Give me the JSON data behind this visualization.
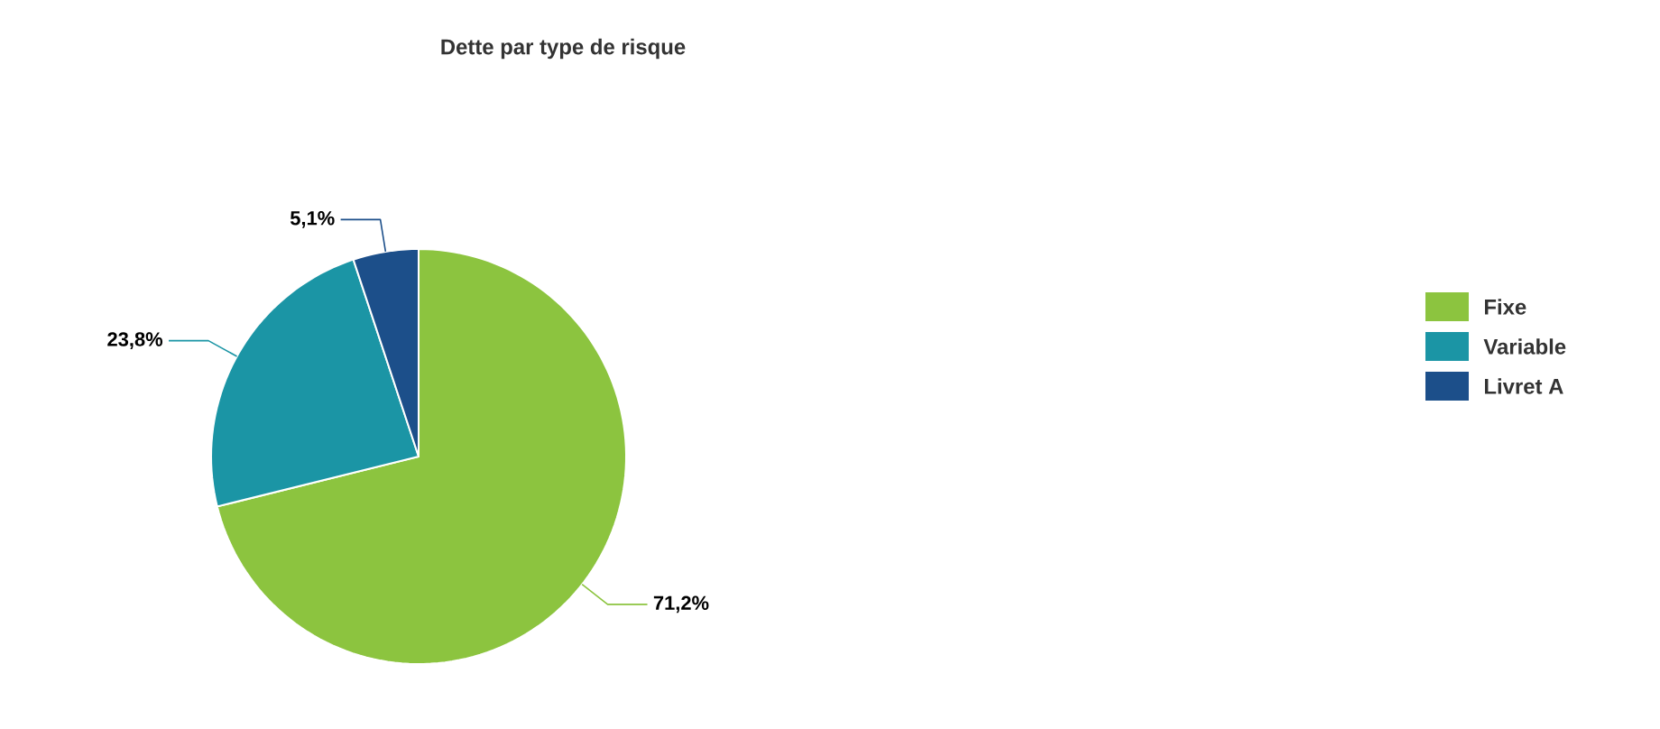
{
  "chart_data": {
    "type": "pie",
    "title": "Dette par type de risque",
    "categories": [
      "Fixe",
      "Variable",
      "Livret A"
    ],
    "values": [
      71.2,
      23.8,
      5.1
    ],
    "colors": [
      "#8cc43f",
      "#1b95a5",
      "#1c4f8a"
    ],
    "value_labels": [
      "71,2%",
      "23,8%",
      "5,1%"
    ],
    "legend": "right"
  }
}
